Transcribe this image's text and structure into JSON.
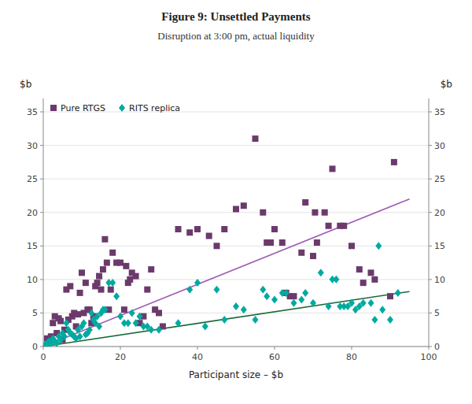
{
  "chart_data": {
    "type": "scatter",
    "title": "Figure 9: Unsettled Payments",
    "subtitle": "Disruption at 3:00 pm, actual liquidity",
    "xlabel": "Participant size – $b",
    "ylabel": "$b",
    "y2label": "$b",
    "xlim": [
      0,
      100
    ],
    "ylim": [
      0,
      37
    ],
    "y2lim": [
      0,
      37
    ],
    "xticks": [
      0,
      20,
      40,
      60,
      80,
      100
    ],
    "yticks": [
      0,
      5,
      10,
      15,
      20,
      25,
      30,
      35
    ],
    "y2ticks": [
      0,
      5,
      10,
      15,
      20,
      25,
      30,
      35
    ],
    "grid": true,
    "legend": "upper left",
    "series": [
      {
        "name": "Pure RTGS",
        "color": "#6B3A6B",
        "marker": "square",
        "x": [
          1.0,
          1.5,
          2.0,
          2.5,
          3.0,
          3.5,
          4.0,
          4.5,
          5.0,
          5.5,
          6.0,
          6.5,
          7.0,
          7.5,
          8.0,
          8.5,
          9.0,
          9.5,
          10.0,
          10.5,
          11.0,
          11.5,
          12.0,
          12.5,
          13.0,
          13.5,
          14.0,
          14.5,
          15.0,
          15.5,
          16.0,
          16.5,
          17.0,
          17.5,
          18.0,
          19.0,
          20.0,
          21.0,
          21.5,
          22.0,
          22.5,
          23.0,
          24.0,
          25.0,
          26.0,
          27.0,
          28.0,
          29.0,
          30.0,
          31.0,
          35.0,
          38.0,
          40.0,
          43.0,
          45.0,
          47.0,
          50.0,
          52.0,
          55.0,
          57.0,
          58.0,
          59.0,
          60.0,
          62.0,
          63.0,
          64.0,
          65.0,
          67.0,
          68.0,
          70.0,
          70.5,
          71.0,
          73.0,
          74.0,
          75.0,
          77.0,
          78.0,
          80.0,
          82.0,
          83.0,
          85.0,
          86.0,
          90.0,
          91.0
        ],
        "values": [
          1.2,
          0.8,
          1.5,
          3.5,
          4.5,
          2.0,
          4.2,
          3.8,
          1.0,
          2.5,
          8.5,
          4.0,
          9.0,
          4.5,
          5.0,
          3.0,
          4.8,
          8.0,
          11.0,
          5.0,
          9.5,
          5.5,
          5.5,
          3.5,
          4.5,
          9.0,
          9.5,
          10.5,
          8.5,
          11.5,
          16.0,
          12.5,
          5.5,
          8.5,
          14.0,
          12.5,
          12.5,
          5.5,
          12.0,
          9.5,
          10.0,
          11.0,
          10.5,
          3.5,
          4.5,
          8.5,
          11.5,
          5.5,
          5.0,
          3.0,
          17.5,
          17.0,
          17.5,
          16.5,
          15.0,
          17.5,
          20.5,
          21.0,
          31.0,
          20.0,
          15.5,
          15.5,
          17.5,
          15.5,
          8.0,
          7.5,
          7.5,
          14.0,
          21.5,
          13.5,
          20.0,
          15.5,
          20.0,
          18.0,
          26.5,
          18.0,
          18.0,
          15.0,
          11.5,
          9.5,
          11.0,
          10.0,
          7.5,
          27.5
        ]
      },
      {
        "name": "RITS replica",
        "color": "#00AAA0",
        "marker": "diamond",
        "x": [
          0.5,
          1.0,
          1.2,
          1.5,
          2.0,
          2.5,
          3.0,
          3.5,
          4.0,
          4.5,
          5.0,
          5.5,
          6.0,
          6.5,
          7.0,
          7.5,
          8.0,
          8.5,
          9.0,
          9.5,
          10.0,
          10.5,
          11.0,
          11.5,
          12.0,
          12.5,
          13.0,
          13.5,
          14.0,
          14.5,
          15.0,
          15.5,
          16.0,
          17.0,
          18.0,
          19.0,
          20.0,
          21.0,
          22.0,
          23.0,
          24.0,
          25.0,
          26.0,
          27.0,
          28.0,
          30.0,
          35.0,
          38.0,
          40.0,
          42.0,
          45.0,
          47.0,
          50.0,
          52.0,
          55.0,
          57.0,
          58.0,
          60.0,
          62.0,
          63.0,
          65.0,
          67.0,
          68.0,
          70.0,
          72.0,
          74.0,
          75.0,
          76.0,
          77.0,
          78.0,
          79.0,
          80.0,
          81.0,
          82.0,
          83.0,
          85.0,
          86.0,
          87.0,
          88.0,
          90.0,
          92.0
        ],
        "values": [
          0.3,
          0.5,
          0.2,
          0.8,
          0.5,
          1.2,
          0.8,
          0.5,
          1.5,
          1.0,
          2.0,
          1.5,
          3.5,
          2.5,
          2.0,
          1.8,
          1.5,
          1.2,
          2.5,
          1.5,
          3.0,
          3.5,
          1.8,
          2.0,
          2.5,
          5.0,
          4.0,
          3.5,
          4.5,
          3.0,
          5.0,
          5.5,
          5.5,
          9.5,
          9.5,
          7.5,
          4.5,
          3.5,
          3.5,
          5.0,
          3.5,
          4.5,
          3.0,
          3.0,
          2.5,
          2.5,
          3.5,
          8.5,
          9.5,
          3.0,
          8.5,
          4.0,
          6.0,
          5.5,
          4.0,
          8.5,
          7.5,
          7.0,
          8.0,
          8.0,
          6.5,
          7.0,
          8.0,
          6.5,
          11.0,
          6.0,
          10.0,
          10.0,
          6.0,
          6.0,
          6.0,
          6.5,
          5.5,
          6.0,
          6.5,
          6.5,
          4.0,
          15.0,
          5.5,
          4.0,
          8.0
        ]
      },
      {
        "type": "line",
        "color": "#9B59B6",
        "x": [
          0,
          95
        ],
        "values": [
          0.0,
          22.0
        ]
      },
      {
        "type": "line",
        "color": "#1A6B3A",
        "x": [
          0,
          95
        ],
        "values": [
          0.0,
          8.2
        ]
      }
    ]
  }
}
